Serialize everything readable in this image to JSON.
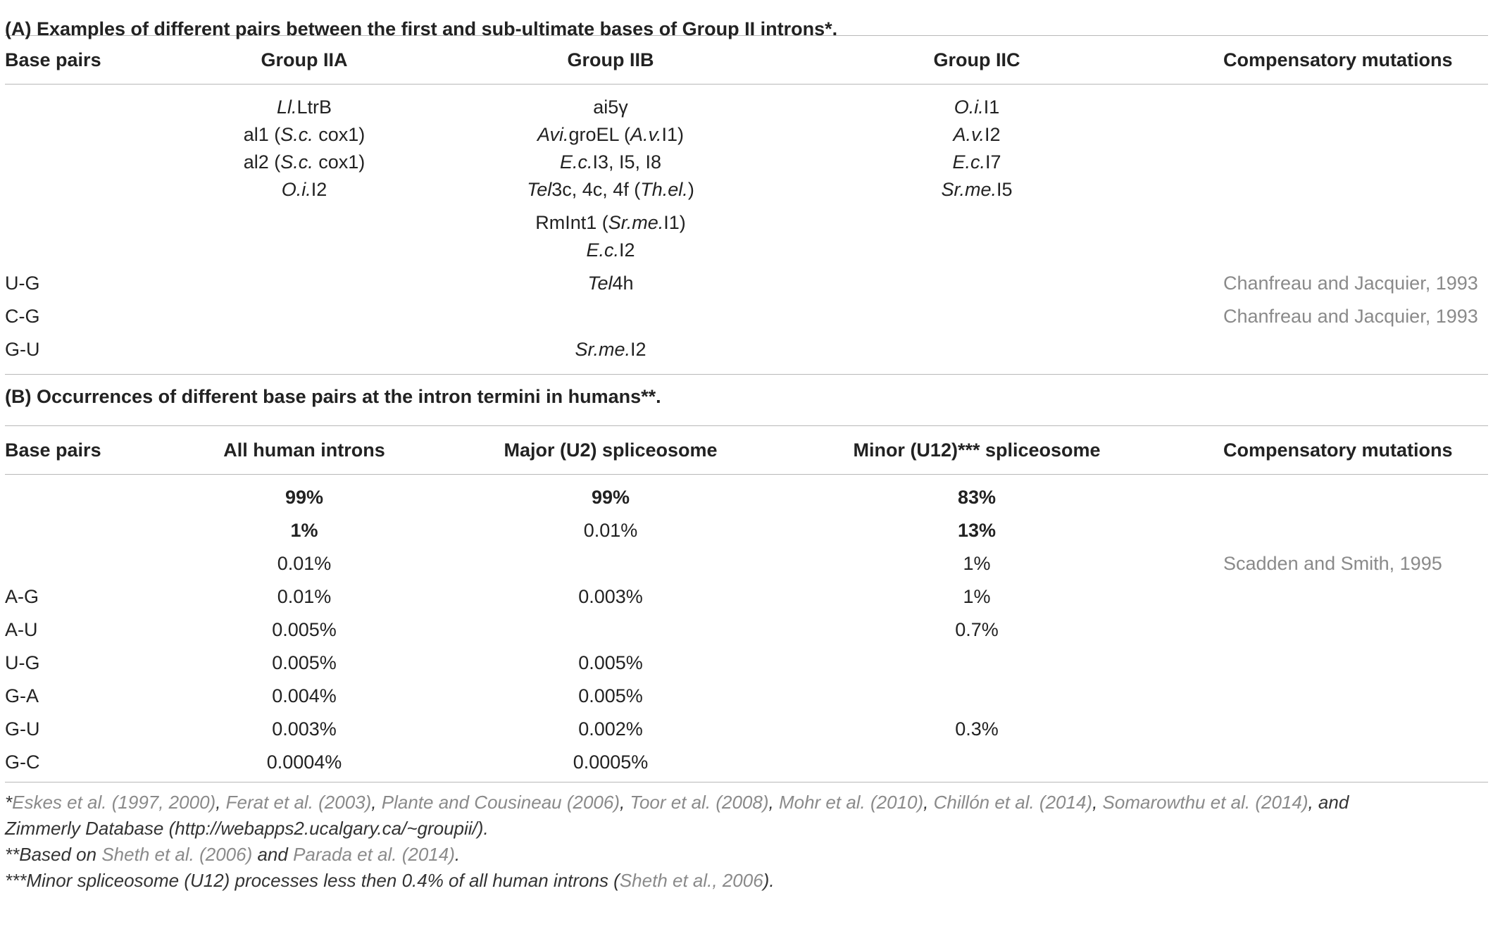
{
  "sectionA": {
    "title": "(A) Examples of different pairs between the first and sub-ultimate bases of Group II introns*.",
    "headers": [
      "Base pairs",
      "Group IIA",
      "Group IIB",
      "Group IIC",
      "Compensatory mutations"
    ],
    "r1": {
      "c2": [
        "Ll.LtrB",
        "al1 (S.c. cox1)",
        "al2 (S.c. cox1)",
        "O.i.I2"
      ],
      "c3": [
        "ai5γ",
        "Avi.groEL (A.v.I1)",
        "E.c.I3, I5, I8",
        "Tel3c, 4c, 4f (Th.el.)",
        "RmInt1 (Sr.me.I1)",
        "E.c.I2"
      ],
      "c4": [
        "O.i.I1",
        "A.v.I2",
        "E.c.I7",
        "Sr.me.I5"
      ]
    },
    "rows": [
      {
        "pair": "U-G",
        "c3": "Tel4h",
        "ref": "Chanfreau and Jacquier, 1993"
      },
      {
        "pair": "C-G",
        "ref": "Chanfreau and Jacquier, 1993"
      },
      {
        "pair": "G-U",
        "c3": "Sr.me.I2"
      }
    ]
  },
  "sectionB": {
    "title": "(B) Occurrences of different base pairs at the intron termini in humans**.",
    "headers": [
      "Base pairs",
      "All human introns",
      "Major (U2) spliceosome",
      "Minor (U12)*** spliceosome",
      "Compensatory mutations"
    ],
    "rows": [
      {
        "pair": "",
        "all": "99%",
        "major": "99%",
        "minor": "83%",
        "ref": ""
      },
      {
        "pair": "",
        "all": "1%",
        "major": "0.01%",
        "minor": "13%",
        "ref": ""
      },
      {
        "pair": "",
        "all": "0.01%",
        "major": "",
        "minor": "1%",
        "ref": "Scadden and Smith, 1995"
      },
      {
        "pair": "A-G",
        "all": "0.01%",
        "major": "0.003%",
        "minor": "1%",
        "ref": ""
      },
      {
        "pair": "A-U",
        "all": "0.005%",
        "major": "",
        "minor": "0.7%",
        "ref": ""
      },
      {
        "pair": "U-G",
        "all": "0.005%",
        "major": "0.005%",
        "minor": "",
        "ref": ""
      },
      {
        "pair": "G-A",
        "all": "0.004%",
        "major": "0.005%",
        "minor": "",
        "ref": ""
      },
      {
        "pair": "G-U",
        "all": "0.003%",
        "major": "0.002%",
        "minor": "0.3%",
        "ref": ""
      },
      {
        "pair": "G-C",
        "all": "0.0004%",
        "major": "0.0005%",
        "minor": "",
        "ref": ""
      }
    ]
  },
  "footnotes": {
    "f1_star": "*",
    "f1_refs": [
      "Eskes et al. (1997, 2000)",
      "Ferat et al. (2003)",
      "Plante and Cousineau (2006)",
      "Toor et al. (2008)",
      "Mohr et al. (2010)",
      "Chillón et al. (2014)",
      "Somarowthu et al. (2014)"
    ],
    "f1_sep": ", ",
    "f1_and": ", and",
    "f1_tail": "Zimmerly Database (http://webapps2.ucalgary.ca/~groupii/).",
    "f2_prefix": "**Based on ",
    "f2_ref1": "Sheth et al. (2006)",
    "f2_mid": " and ",
    "f2_ref2": "Parada et al. (2014)",
    "f2_end": ".",
    "f3_prefix": "***Minor spliceosome (U12) processes less then 0.4% of all human introns (",
    "f3_ref": "Sheth et al., 2006",
    "f3_end": ")."
  }
}
